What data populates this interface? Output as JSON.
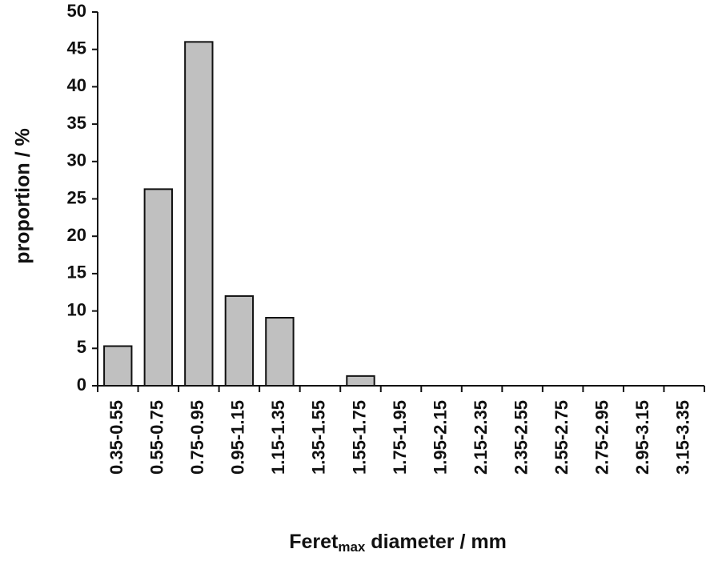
{
  "chart_data": {
    "type": "bar",
    "ylabel": "proportion / %",
    "xlabel": [
      "Feret",
      "max",
      " diameter / mm"
    ],
    "categories": [
      "0.35-0.55",
      "0.55-0.75",
      "0.75-0.95",
      "0.95-1.15",
      "1.15-1.35",
      "1.35-1.55",
      "1.55-1.75",
      "1.75-1.95",
      "1.95-2.15",
      "2.15-2.35",
      "2.35-2.55",
      "2.55-2.75",
      "2.75-2.95",
      "2.95-3.15",
      "3.15-3.35"
    ],
    "values": [
      5.3,
      26.3,
      46,
      12,
      9.1,
      0,
      1.3,
      0,
      0,
      0,
      0,
      0,
      0,
      0,
      0
    ],
    "color": "#c0c0c0",
    "ylim": [
      0,
      50
    ],
    "yticks": [
      0,
      5,
      10,
      15,
      20,
      25,
      30,
      35,
      40,
      45,
      50
    ],
    "grid": false
  }
}
